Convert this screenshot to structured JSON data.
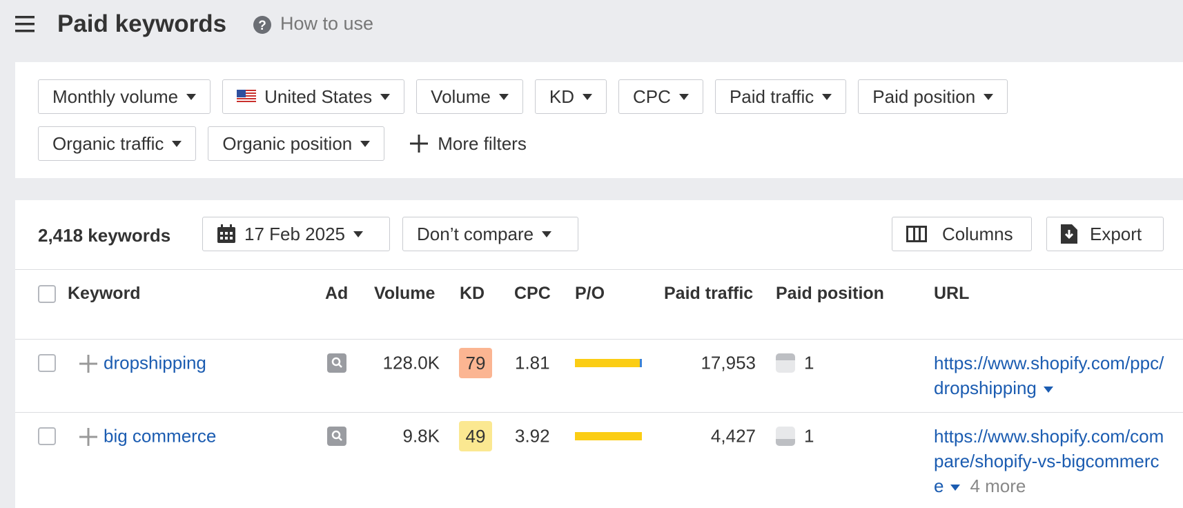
{
  "header": {
    "title": "Paid keywords",
    "help": "How to use"
  },
  "filters": [
    "Monthly volume",
    "United States",
    "Volume",
    "KD",
    "CPC",
    "Paid traffic",
    "Paid position",
    "Organic traffic",
    "Organic position"
  ],
  "more_filters": "More filters",
  "toolbar": {
    "count": "2,418 keywords",
    "date": "17 Feb 2025",
    "compare": "Don’t compare",
    "columns": "Columns",
    "export": "Export"
  },
  "table": {
    "columns": [
      "Keyword",
      "Ad",
      "Volume",
      "KD",
      "CPC",
      "P/O",
      "Paid traffic",
      "Paid position",
      "URL"
    ],
    "rows": [
      {
        "keyword": "dropshipping",
        "volume": "128.0K",
        "kd": "79",
        "kd_color": "#fbb592",
        "cpc": "1.81",
        "paid_share": 97,
        "paid_traffic": "17,953",
        "paid_position": "1",
        "url": "https://www.shopify.com/ppc/dropshipping"
      },
      {
        "keyword": "big commerce",
        "volume": "9.8K",
        "kd": "49",
        "kd_color": "#fbe891",
        "cpc": "3.92",
        "paid_share": 100,
        "paid_traffic": "4,427",
        "paid_position": "1",
        "url": "https://www.shopify.com/compare/shopify-vs-bigcommerce",
        "more": "4 more"
      }
    ]
  }
}
